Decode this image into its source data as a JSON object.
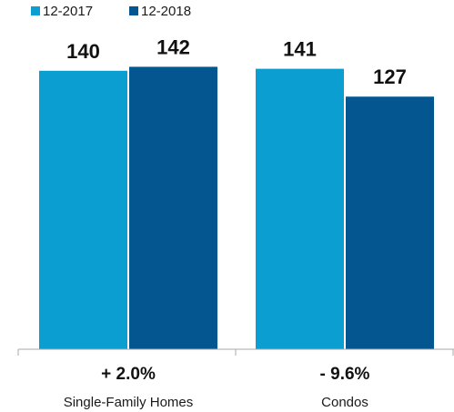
{
  "chart_data": {
    "type": "bar",
    "categories": [
      "Single-Family Homes",
      "Condos"
    ],
    "changes": [
      "+ 2.0%",
      "- 9.6%"
    ],
    "series": [
      {
        "name": "12-2017",
        "color": "#0a9fd0",
        "values": [
          140,
          141
        ]
      },
      {
        "name": "12-2018",
        "color": "#03568f",
        "values": [
          142,
          127
        ]
      }
    ],
    "ylim": [
      0,
      155
    ],
    "grid": false,
    "legend": "top-left"
  }
}
